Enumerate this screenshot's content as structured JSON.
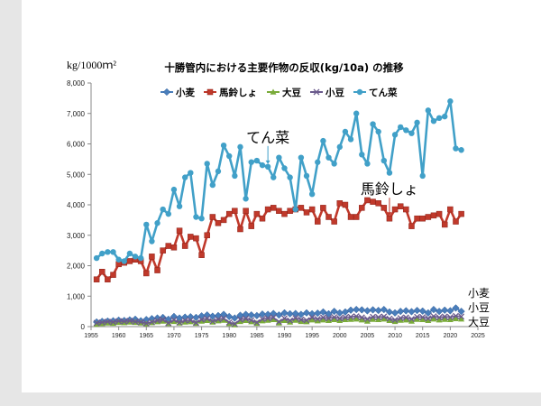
{
  "chart_data": {
    "type": "line",
    "title": "十勝管内における主要作物の反収(kg/10a) の推移",
    "ylabel": "kg/1000ｍ²",
    "xlabel": "",
    "xlim": [
      1955,
      2025
    ],
    "ylim": [
      0,
      8000
    ],
    "x_ticks": [
      "1955",
      "1960",
      "1965",
      "1970",
      "1975",
      "1980",
      "1985",
      "1990",
      "1995",
      "2000",
      "2005",
      "2010",
      "2015",
      "2020",
      "2025"
    ],
    "y_ticks": [
      "0",
      "1,000",
      "2,000",
      "3,000",
      "4,000",
      "5,000",
      "6,000",
      "7,000",
      "8,000"
    ],
    "grid": false,
    "legend_position": "top",
    "annotations": [
      {
        "text": "てん菜",
        "series": "てん菜",
        "year": 1987
      },
      {
        "text": "馬鈴しょ",
        "series": "馬鈴しょ",
        "year": 2009
      }
    ],
    "end_labels": [
      "小麦",
      "小豆",
      "大豆"
    ],
    "series": [
      {
        "name": "小麦",
        "color": "#4a7ebb",
        "marker": "diamond",
        "x": [
          1956,
          1957,
          1958,
          1959,
          1960,
          1961,
          1962,
          1963,
          1964,
          1965,
          1966,
          1967,
          1968,
          1969,
          1970,
          1971,
          1972,
          1973,
          1974,
          1975,
          1976,
          1977,
          1978,
          1979,
          1980,
          1981,
          1982,
          1983,
          1984,
          1985,
          1986,
          1987,
          1988,
          1989,
          1990,
          1991,
          1992,
          1993,
          1994,
          1995,
          1996,
          1997,
          1998,
          1999,
          2000,
          2001,
          2002,
          2003,
          2004,
          2005,
          2006,
          2007,
          2008,
          2009,
          2010,
          2011,
          2012,
          2013,
          2014,
          2015,
          2016,
          2017,
          2018,
          2019,
          2020,
          2021,
          2022
        ],
        "values": [
          150,
          170,
          180,
          190,
          210,
          200,
          220,
          240,
          190,
          230,
          260,
          280,
          300,
          240,
          330,
          280,
          310,
          320,
          300,
          350,
          380,
          340,
          360,
          400,
          330,
          280,
          370,
          400,
          380,
          360,
          410,
          400,
          430,
          380,
          450,
          420,
          430,
          400,
          450,
          420,
          440,
          480,
          420,
          500,
          450,
          480,
          540,
          560,
          550,
          520,
          550,
          530,
          560,
          480,
          450,
          500,
          520,
          490,
          530,
          510,
          450,
          560,
          500,
          540,
          520,
          610,
          500
        ]
      },
      {
        "name": "馬鈴しょ",
        "color": "#c0392b",
        "marker": "square",
        "x": [
          1956,
          1957,
          1958,
          1959,
          1960,
          1961,
          1962,
          1963,
          1964,
          1965,
          1966,
          1967,
          1968,
          1969,
          1970,
          1971,
          1972,
          1973,
          1974,
          1975,
          1976,
          1977,
          1978,
          1979,
          1980,
          1981,
          1982,
          1983,
          1984,
          1985,
          1986,
          1987,
          1988,
          1989,
          1990,
          1991,
          1992,
          1993,
          1994,
          1995,
          1996,
          1997,
          1998,
          1999,
          2000,
          2001,
          2002,
          2003,
          2004,
          2005,
          2006,
          2007,
          2008,
          2009,
          2010,
          2011,
          2012,
          2013,
          2014,
          2015,
          2016,
          2017,
          2018,
          2019,
          2020,
          2021,
          2022
        ],
        "values": [
          1550,
          1800,
          1550,
          1700,
          2050,
          2100,
          2150,
          2200,
          2150,
          1750,
          2300,
          1850,
          2500,
          2650,
          2600,
          3150,
          2650,
          2950,
          2900,
          2350,
          3000,
          3600,
          3400,
          3500,
          3700,
          3800,
          3200,
          3800,
          3300,
          3700,
          3550,
          3850,
          3900,
          3800,
          3700,
          3800,
          3850,
          3900,
          3750,
          3850,
          3450,
          3900,
          3600,
          3450,
          4050,
          4000,
          3600,
          3600,
          3900,
          4150,
          4100,
          4050,
          3900,
          3550,
          3850,
          3950,
          3850,
          3300,
          3550,
          3550,
          3600,
          3650,
          3700,
          3350,
          3850,
          3450,
          3700
        ]
      },
      {
        "name": "大豆",
        "color": "#7aab3a",
        "marker": "triangle",
        "x": [
          1956,
          1957,
          1958,
          1959,
          1960,
          1961,
          1962,
          1963,
          1964,
          1965,
          1966,
          1967,
          1968,
          1969,
          1970,
          1971,
          1972,
          1973,
          1974,
          1975,
          1976,
          1977,
          1978,
          1979,
          1980,
          1981,
          1982,
          1983,
          1984,
          1985,
          1986,
          1987,
          1988,
          1989,
          1990,
          1991,
          1992,
          1993,
          1994,
          1995,
          1996,
          1997,
          1998,
          1999,
          2000,
          2001,
          2002,
          2003,
          2004,
          2005,
          2006,
          2007,
          2008,
          2009,
          2010,
          2011,
          2012,
          2013,
          2014,
          2015,
          2016,
          2017,
          2018,
          2019,
          2020,
          2021,
          2022
        ],
        "values": [
          80,
          100,
          120,
          110,
          140,
          130,
          150,
          140,
          120,
          90,
          130,
          160,
          180,
          100,
          170,
          120,
          150,
          160,
          110,
          180,
          200,
          150,
          190,
          210,
          100,
          60,
          170,
          200,
          160,
          110,
          190,
          210,
          230,
          120,
          200,
          150,
          210,
          170,
          160,
          220,
          190,
          220,
          200,
          230,
          200,
          230,
          240,
          250,
          220,
          180,
          240,
          230,
          250,
          200,
          170,
          210,
          220,
          180,
          240,
          230,
          200,
          250,
          220,
          240,
          230,
          260,
          250
        ]
      },
      {
        "name": "小豆",
        "color": "#6a5a8c",
        "marker": "x",
        "x": [
          1956,
          1957,
          1958,
          1959,
          1960,
          1961,
          1962,
          1963,
          1964,
          1965,
          1966,
          1967,
          1968,
          1969,
          1970,
          1971,
          1972,
          1973,
          1974,
          1975,
          1976,
          1977,
          1978,
          1979,
          1980,
          1981,
          1982,
          1983,
          1984,
          1985,
          1986,
          1987,
          1988,
          1989,
          1990,
          1991,
          1992,
          1993,
          1994,
          1995,
          1996,
          1997,
          1998,
          1999,
          2000,
          2001,
          2002,
          2003,
          2004,
          2005,
          2006,
          2007,
          2008,
          2009,
          2010,
          2011,
          2012,
          2013,
          2014,
          2015,
          2016,
          2017,
          2018,
          2019,
          2020,
          2021,
          2022
        ],
        "values": [
          120,
          140,
          160,
          150,
          180,
          170,
          190,
          160,
          150,
          110,
          150,
          200,
          230,
          120,
          220,
          140,
          200,
          210,
          130,
          230,
          260,
          180,
          240,
          270,
          140,
          90,
          230,
          260,
          210,
          140,
          250,
          270,
          300,
          160,
          270,
          200,
          280,
          230,
          210,
          300,
          250,
          300,
          270,
          310,
          270,
          300,
          320,
          340,
          300,
          250,
          320,
          310,
          330,
          260,
          220,
          280,
          300,
          250,
          320,
          310,
          270,
          340,
          300,
          330,
          310,
          350,
          330
        ]
      },
      {
        "name": "てん菜",
        "color": "#41a0c8",
        "marker": "circle",
        "x": [
          1956,
          1957,
          1958,
          1959,
          1960,
          1961,
          1962,
          1963,
          1964,
          1965,
          1966,
          1967,
          1968,
          1969,
          1970,
          1971,
          1972,
          1973,
          1974,
          1975,
          1976,
          1977,
          1978,
          1979,
          1980,
          1981,
          1982,
          1983,
          1984,
          1985,
          1986,
          1987,
          1988,
          1989,
          1990,
          1991,
          1992,
          1993,
          1994,
          1995,
          1996,
          1997,
          1998,
          1999,
          2000,
          2001,
          2002,
          2003,
          2004,
          2005,
          2006,
          2007,
          2008,
          2009,
          2010,
          2011,
          2012,
          2013,
          2014,
          2015,
          2016,
          2017,
          2018,
          2019,
          2020,
          2021,
          2022
        ],
        "values": [
          2250,
          2400,
          2450,
          2450,
          2200,
          2150,
          2400,
          2300,
          2250,
          3350,
          2800,
          3400,
          3850,
          3700,
          4500,
          3950,
          4900,
          5050,
          3600,
          3550,
          5350,
          4650,
          5100,
          5950,
          5600,
          4950,
          5900,
          4200,
          5400,
          5450,
          5300,
          5250,
          4900,
          5550,
          5200,
          4900,
          3850,
          5550,
          4950,
          4350,
          5400,
          6100,
          5550,
          5350,
          5900,
          6400,
          6150,
          7000,
          5650,
          5350,
          6650,
          6400,
          5450,
          5050,
          6300,
          6550,
          6450,
          6350,
          6700,
          4950,
          7100,
          6750,
          6850,
          6900,
          7400,
          5850,
          5800
        ]
      }
    ]
  }
}
